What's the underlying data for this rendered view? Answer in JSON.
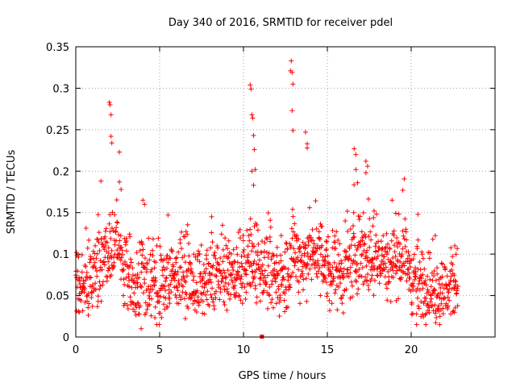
{
  "chart_data": {
    "type": "scatter",
    "title": "Day 340 of 2016, SRMTID for receiver pdel",
    "xlabel": "GPS time / hours",
    "ylabel": "SRMTID / TECUs",
    "xlim": [
      0,
      25
    ],
    "ylim": [
      0,
      0.35
    ],
    "xticks": [
      0,
      5,
      10,
      15,
      20
    ],
    "xtick_labels": [
      "0",
      "5",
      "10",
      "15",
      "20"
    ],
    "yticks": [
      0,
      0.05,
      0.1,
      0.15,
      0.2,
      0.25,
      0.3,
      0.35
    ],
    "ytick_labels": [
      "0",
      "0.05",
      "0.1",
      "0.15",
      "0.2",
      "0.25",
      "0.3",
      "0.35"
    ],
    "grid": true,
    "marker": "+",
    "series": [
      {
        "name": "SRMTID",
        "color": "#ff0000",
        "envelope": [
          [
            0.0,
            0.065
          ],
          [
            0.5,
            0.06
          ],
          [
            1.0,
            0.07
          ],
          [
            1.5,
            0.09
          ],
          [
            2.0,
            0.1
          ],
          [
            2.5,
            0.11
          ],
          [
            3.0,
            0.075
          ],
          [
            3.5,
            0.055
          ],
          [
            4.0,
            0.08
          ],
          [
            4.5,
            0.07
          ],
          [
            5.0,
            0.055
          ],
          [
            5.5,
            0.075
          ],
          [
            6.0,
            0.07
          ],
          [
            6.5,
            0.08
          ],
          [
            7.0,
            0.065
          ],
          [
            7.5,
            0.06
          ],
          [
            8.0,
            0.07
          ],
          [
            8.5,
            0.075
          ],
          [
            9.0,
            0.08
          ],
          [
            9.5,
            0.075
          ],
          [
            10.0,
            0.08
          ],
          [
            10.5,
            0.1
          ],
          [
            11.0,
            0.08
          ],
          [
            11.5,
            0.085
          ],
          [
            12.0,
            0.07
          ],
          [
            12.5,
            0.075
          ],
          [
            13.0,
            0.1
          ],
          [
            13.5,
            0.095
          ],
          [
            14.0,
            0.105
          ],
          [
            14.5,
            0.095
          ],
          [
            15.0,
            0.08
          ],
          [
            15.5,
            0.085
          ],
          [
            16.0,
            0.075
          ],
          [
            16.5,
            0.095
          ],
          [
            17.0,
            0.105
          ],
          [
            17.5,
            0.09
          ],
          [
            18.0,
            0.1
          ],
          [
            18.5,
            0.085
          ],
          [
            19.0,
            0.095
          ],
          [
            19.5,
            0.1
          ],
          [
            20.0,
            0.07
          ],
          [
            20.5,
            0.065
          ],
          [
            21.0,
            0.06
          ],
          [
            21.5,
            0.055
          ],
          [
            22.0,
            0.055
          ],
          [
            22.5,
            0.06
          ],
          [
            22.8,
            0.06
          ]
        ],
        "spikes": [
          [
            2.0,
            0.283
          ],
          [
            2.05,
            0.28
          ],
          [
            2.1,
            0.268
          ],
          [
            2.1,
            0.242
          ],
          [
            2.15,
            0.234
          ],
          [
            2.6,
            0.223
          ],
          [
            1.5,
            0.188
          ],
          [
            2.6,
            0.187
          ],
          [
            2.7,
            0.178
          ],
          [
            10.4,
            0.304
          ],
          [
            10.45,
            0.299
          ],
          [
            10.5,
            0.268
          ],
          [
            10.55,
            0.264
          ],
          [
            10.6,
            0.243
          ],
          [
            10.65,
            0.226
          ],
          [
            10.7,
            0.202
          ],
          [
            10.5,
            0.2
          ],
          [
            10.6,
            0.183
          ],
          [
            12.85,
            0.333
          ],
          [
            12.8,
            0.321
          ],
          [
            12.9,
            0.319
          ],
          [
            12.95,
            0.305
          ],
          [
            12.9,
            0.273
          ],
          [
            12.95,
            0.249
          ],
          [
            13.7,
            0.247
          ],
          [
            13.8,
            0.233
          ],
          [
            13.8,
            0.228
          ],
          [
            16.6,
            0.227
          ],
          [
            16.7,
            0.22
          ],
          [
            17.3,
            0.212
          ],
          [
            17.4,
            0.206
          ],
          [
            16.7,
            0.202
          ],
          [
            17.3,
            0.198
          ],
          [
            16.8,
            0.186
          ],
          [
            19.5,
            0.177
          ],
          [
            4.0,
            0.165
          ],
          [
            4.1,
            0.16
          ],
          [
            8.1,
            0.145
          ],
          [
            5.5,
            0.147
          ],
          [
            3.9,
            0.01
          ],
          [
            20.4,
            0.148
          ],
          [
            22.6,
            0.11
          ]
        ],
        "min_marker": [
          11.1,
          0.0
        ]
      }
    ]
  }
}
